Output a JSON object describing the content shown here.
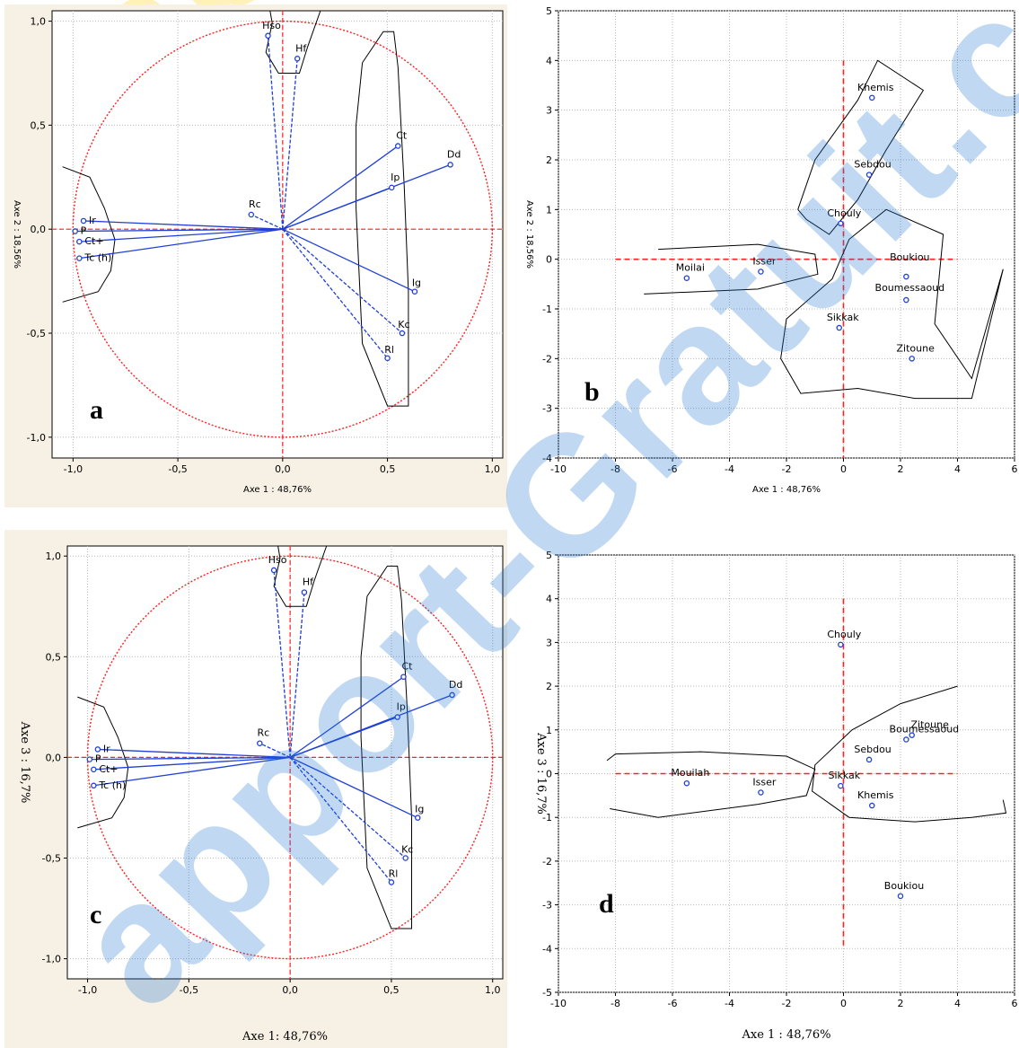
{
  "watermark": "apport-Gratuit.c",
  "colors": {
    "circle": "#ff2020",
    "axis": "#ff2020",
    "vec": "#1f3fd8",
    "point": "#1f3fd8",
    "bgcorr": "#f7f0e4",
    "bgind": "#ffffff"
  },
  "chart_data": [
    {
      "type": "scatter",
      "letter": "a",
      "title": "",
      "xlabel": "Axe 1 : 48,76%",
      "ylabel": "Axe 2 : 18,56%",
      "xlim": [
        -1.1,
        1.05
      ],
      "ylim": [
        -1.1,
        1.05
      ],
      "xticks": [
        -1.0,
        -0.5,
        0.0,
        0.5,
        1.0
      ],
      "yticks": [
        1.0,
        0.5,
        0.0,
        -0.5,
        -1.0
      ],
      "xtick_labels": [
        "-1,0",
        "-0,5",
        "0,0",
        "0,5",
        "1,0"
      ],
      "ytick_labels": [
        "1,0",
        "0,5",
        "0,0",
        "-0,5",
        "-1,0"
      ],
      "grid": true,
      "correlation_circle": true,
      "points": [
        {
          "label": "Hso",
          "x": -0.07,
          "y": 0.93
        },
        {
          "label": "Hf",
          "x": 0.07,
          "y": 0.82
        },
        {
          "label": "Ct",
          "x": 0.55,
          "y": 0.4
        },
        {
          "label": "Dd",
          "x": 0.8,
          "y": 0.31
        },
        {
          "label": "Ip",
          "x": 0.52,
          "y": 0.2
        },
        {
          "label": "Rc",
          "x": -0.15,
          "y": 0.07
        },
        {
          "label": "Ir",
          "x": -0.95,
          "y": 0.04
        },
        {
          "label": "P",
          "x": -0.99,
          "y": -0.01
        },
        {
          "label": "Ct+",
          "x": -0.97,
          "y": -0.06
        },
        {
          "label": "Tc (h)",
          "x": -0.97,
          "y": -0.14
        },
        {
          "label": "Ig",
          "x": 0.63,
          "y": -0.3
        },
        {
          "label": "Kc",
          "x": 0.57,
          "y": -0.5
        },
        {
          "label": "Rl",
          "x": 0.5,
          "y": -0.62
        }
      ]
    },
    {
      "type": "scatter",
      "letter": "b",
      "title": "",
      "xlabel": "Axe 1 : 48,76%",
      "ylabel": "Axe 2 : 18,56%",
      "xlim": [
        -10,
        6
      ],
      "ylim": [
        -4,
        5
      ],
      "xticks": [
        -10,
        -8,
        -6,
        -4,
        -2,
        0,
        2,
        4,
        6
      ],
      "yticks": [
        5,
        4,
        3,
        2,
        1,
        0,
        -1,
        -2,
        -3,
        -4
      ],
      "grid": true,
      "points": [
        {
          "label": "Khemis",
          "x": 1.0,
          "y": 3.25
        },
        {
          "label": "Sebdou",
          "x": 0.9,
          "y": 1.7
        },
        {
          "label": "Chouly",
          "x": -0.1,
          "y": 0.72
        },
        {
          "label": "Isser",
          "x": -2.9,
          "y": -0.25
        },
        {
          "label": "Moilai",
          "x": -5.5,
          "y": -0.38
        },
        {
          "label": "Boukiou",
          "x": 2.2,
          "y": -0.35
        },
        {
          "label": "Boumessaoud",
          "x": 2.2,
          "y": -0.82
        },
        {
          "label": "Sikkak",
          "x": -0.15,
          "y": -1.38
        },
        {
          "label": "Zitoune",
          "x": 2.4,
          "y": -2.0
        }
      ]
    },
    {
      "type": "scatter",
      "letter": "c",
      "title": "",
      "xlabel": "Axe 1: 48,76%",
      "ylabel": "Axe 3 : 16,7%",
      "xlim": [
        -1.1,
        1.05
      ],
      "ylim": [
        -1.1,
        1.05
      ],
      "xticks": [
        -1.0,
        -0.5,
        0.0,
        0.5,
        1.0
      ],
      "yticks": [
        1.0,
        0.5,
        0.0,
        -0.5,
        -1.0
      ],
      "xtick_labels": [
        "-1,0",
        "-0,5",
        "0,0",
        "0,5",
        "1,0"
      ],
      "ytick_labels": [
        "1,0",
        "0,5",
        "0,0",
        "-0,5",
        "-1,0"
      ],
      "grid": true,
      "correlation_circle": true,
      "points": [
        {
          "label": "Hso",
          "x": -0.08,
          "y": 0.93
        },
        {
          "label": "Hf",
          "x": 0.07,
          "y": 0.82
        },
        {
          "label": "Ct",
          "x": 0.56,
          "y": 0.4
        },
        {
          "label": "Dd",
          "x": 0.8,
          "y": 0.31
        },
        {
          "label": "Ip",
          "x": 0.53,
          "y": 0.2
        },
        {
          "label": "Rc",
          "x": -0.15,
          "y": 0.07
        },
        {
          "label": "Ir",
          "x": -0.95,
          "y": 0.04
        },
        {
          "label": "P",
          "x": -0.99,
          "y": -0.01
        },
        {
          "label": "Ct+",
          "x": -0.97,
          "y": -0.06
        },
        {
          "label": "Tc (h)",
          "x": -0.97,
          "y": -0.14
        },
        {
          "label": "Ig",
          "x": 0.63,
          "y": -0.3
        },
        {
          "label": "Kc",
          "x": 0.57,
          "y": -0.5
        },
        {
          "label": "Rl",
          "x": 0.5,
          "y": -0.62
        }
      ]
    },
    {
      "type": "scatter",
      "letter": "d",
      "title": "",
      "xlabel": "Axe 1 : 48,76%",
      "ylabel": "Axe 3 : 16,7%",
      "xlim": [
        -10,
        6
      ],
      "ylim": [
        -5,
        5
      ],
      "xticks": [
        -10,
        -8,
        -6,
        -4,
        -2,
        0,
        2,
        4,
        6
      ],
      "yticks": [
        5,
        4,
        3,
        2,
        1,
        0,
        -1,
        -2,
        -3,
        -4,
        -5
      ],
      "grid": true,
      "points": [
        {
          "label": "Chouly",
          "x": -0.1,
          "y": 2.95
        },
        {
          "label": "Zitoune",
          "x": 2.4,
          "y": 0.88
        },
        {
          "label": "Boumessaoud",
          "x": 2.2,
          "y": 0.78
        },
        {
          "label": "Sebdou",
          "x": 0.9,
          "y": 0.32
        },
        {
          "label": "Sikkak",
          "x": -0.1,
          "y": -0.28
        },
        {
          "label": "Mouilah",
          "x": -5.5,
          "y": -0.22
        },
        {
          "label": "Isser",
          "x": -2.9,
          "y": -0.43
        },
        {
          "label": "Khemis",
          "x": 1.0,
          "y": -0.73
        },
        {
          "label": "Boukiou",
          "x": 2.0,
          "y": -2.8
        }
      ]
    }
  ]
}
